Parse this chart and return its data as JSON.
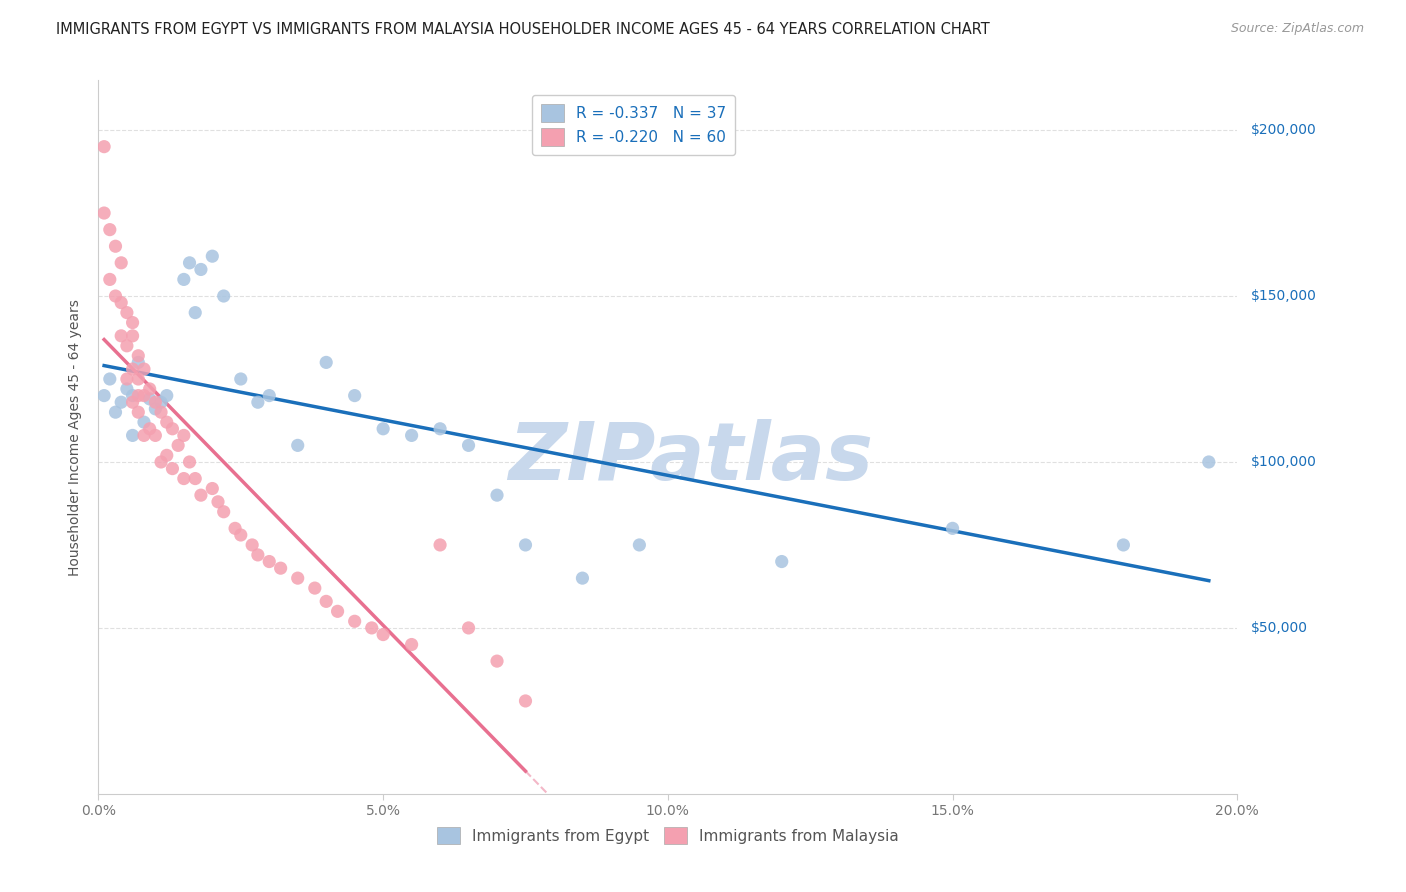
{
  "title": "IMMIGRANTS FROM EGYPT VS IMMIGRANTS FROM MALAYSIA HOUSEHOLDER INCOME AGES 45 - 64 YEARS CORRELATION CHART",
  "source": "Source: ZipAtlas.com",
  "ylabel": "Householder Income Ages 45 - 64 years",
  "y_tick_labels": [
    "$50,000",
    "$100,000",
    "$150,000",
    "$200,000"
  ],
  "y_tick_values": [
    50000,
    100000,
    150000,
    200000
  ],
  "xlim": [
    0.0,
    0.2
  ],
  "ylim": [
    0,
    215000
  ],
  "legend_egypt_R": "-0.337",
  "legend_egypt_N": "37",
  "legend_malaysia_R": "-0.220",
  "legend_malaysia_N": "60",
  "color_egypt": "#a8c4e0",
  "color_malaysia": "#f4a0b0",
  "color_egypt_line": "#1a6fba",
  "color_malaysia_line": "#e87090",
  "color_watermark": "#c8d8e8",
  "background_color": "#ffffff",
  "grid_color": "#e0e0e0",
  "egypt_x": [
    0.001,
    0.002,
    0.003,
    0.004,
    0.005,
    0.006,
    0.006,
    0.007,
    0.008,
    0.009,
    0.01,
    0.011,
    0.012,
    0.015,
    0.016,
    0.017,
    0.018,
    0.02,
    0.022,
    0.025,
    0.028,
    0.03,
    0.035,
    0.04,
    0.045,
    0.05,
    0.055,
    0.06,
    0.065,
    0.07,
    0.075,
    0.085,
    0.095,
    0.12,
    0.15,
    0.18,
    0.195
  ],
  "egypt_y": [
    120000,
    125000,
    115000,
    118000,
    122000,
    108000,
    120000,
    130000,
    112000,
    119000,
    116000,
    118000,
    120000,
    155000,
    160000,
    145000,
    158000,
    162000,
    150000,
    125000,
    118000,
    120000,
    105000,
    130000,
    120000,
    110000,
    108000,
    110000,
    105000,
    90000,
    75000,
    65000,
    75000,
    70000,
    80000,
    75000,
    100000
  ],
  "malaysia_x": [
    0.001,
    0.001,
    0.002,
    0.002,
    0.003,
    0.003,
    0.004,
    0.004,
    0.004,
    0.005,
    0.005,
    0.005,
    0.006,
    0.006,
    0.006,
    0.006,
    0.007,
    0.007,
    0.007,
    0.007,
    0.008,
    0.008,
    0.008,
    0.009,
    0.009,
    0.01,
    0.01,
    0.011,
    0.011,
    0.012,
    0.012,
    0.013,
    0.013,
    0.014,
    0.015,
    0.015,
    0.016,
    0.017,
    0.018,
    0.02,
    0.021,
    0.022,
    0.024,
    0.025,
    0.027,
    0.028,
    0.03,
    0.032,
    0.035,
    0.038,
    0.04,
    0.042,
    0.045,
    0.048,
    0.05,
    0.055,
    0.06,
    0.065,
    0.07,
    0.075
  ],
  "malaysia_y": [
    195000,
    175000,
    170000,
    155000,
    165000,
    150000,
    160000,
    148000,
    138000,
    145000,
    135000,
    125000,
    142000,
    138000,
    128000,
    118000,
    132000,
    125000,
    120000,
    115000,
    128000,
    120000,
    108000,
    122000,
    110000,
    118000,
    108000,
    115000,
    100000,
    112000,
    102000,
    110000,
    98000,
    105000,
    108000,
    95000,
    100000,
    95000,
    90000,
    92000,
    88000,
    85000,
    80000,
    78000,
    75000,
    72000,
    70000,
    68000,
    65000,
    62000,
    58000,
    55000,
    52000,
    50000,
    48000,
    45000,
    75000,
    50000,
    40000,
    28000
  ]
}
